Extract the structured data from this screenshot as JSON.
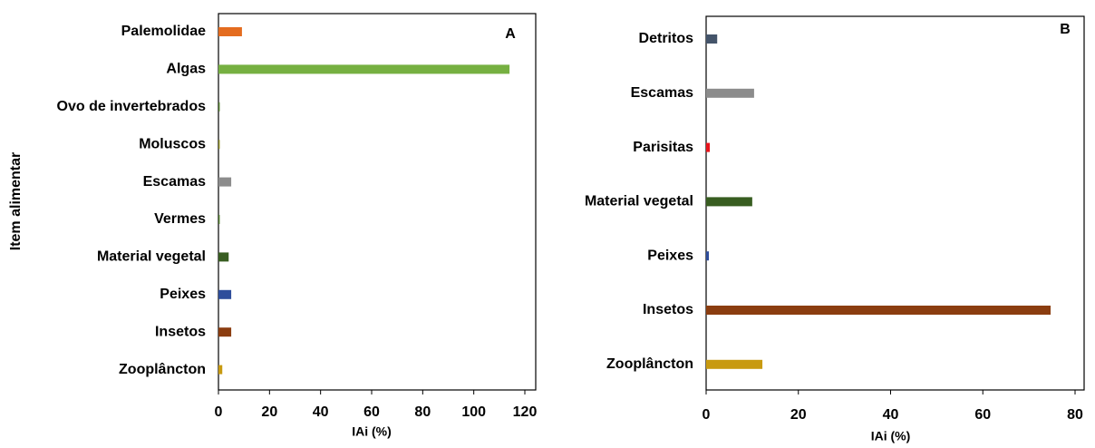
{
  "chart_data": [
    {
      "type": "bar",
      "orientation": "horizontal",
      "annotation": "A",
      "xlabel": "IAi (%)",
      "ylabel": "Item alimentar",
      "categories": [
        "Palemolidae",
        "Algas",
        "Ovo de invertebrados",
        "Moluscos",
        "Escamas",
        "Vermes",
        "Material vegetal",
        "Peixes",
        "Insetos",
        "Zooplâncton"
      ],
      "values": [
        9.2,
        114,
        0.5,
        0.5,
        5,
        0.5,
        4,
        5,
        5,
        1.5
      ],
      "colors": [
        "#e46c1f",
        "#76b041",
        "#4e7a2a",
        "#8a8a20",
        "#8c8c8c",
        "#4e7a2a",
        "#385d21",
        "#2e4d9b",
        "#8b3d10",
        "#c89a10"
      ],
      "xlim": [
        0,
        120
      ],
      "xticks": [
        0,
        20,
        40,
        60,
        80,
        100,
        120
      ]
    },
    {
      "type": "bar",
      "orientation": "horizontal",
      "annotation": "B",
      "xlabel": "IAi (%)",
      "categories": [
        "Detritos",
        "Escamas",
        "Parisitas",
        "Material vegetal",
        "Peixes",
        "Insetos",
        "Zooplâncton"
      ],
      "values": [
        2.4,
        10.4,
        0.8,
        10,
        0.6,
        74.7,
        12.2
      ],
      "colors": [
        "#44546a",
        "#8c8c8c",
        "#e8141c",
        "#385d21",
        "#2e4d9b",
        "#8b3d10",
        "#c89a10"
      ],
      "xlim": [
        0,
        80
      ],
      "xticks": [
        0,
        20,
        40,
        60,
        80
      ]
    }
  ]
}
